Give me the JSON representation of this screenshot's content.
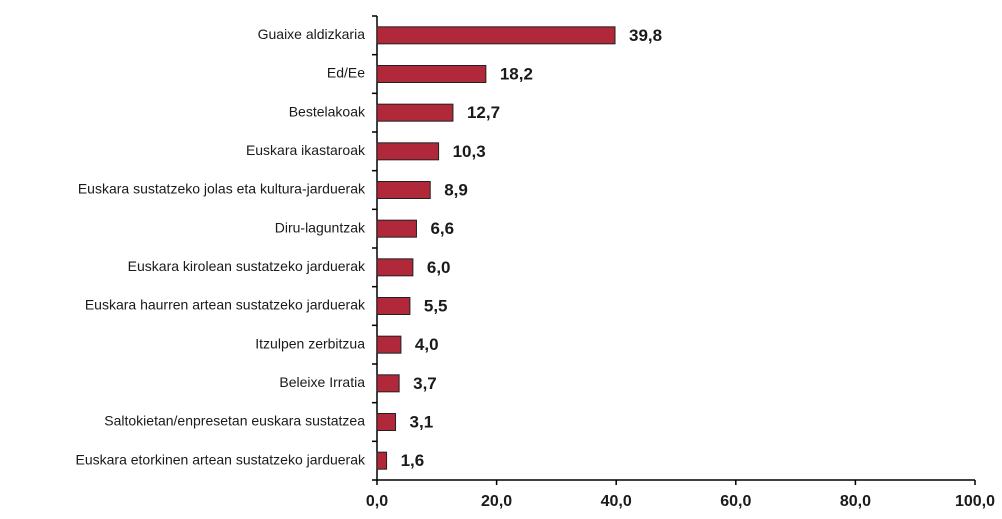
{
  "chart_data": {
    "type": "bar",
    "orientation": "horizontal",
    "categories": [
      "Guaixe aldizkaria",
      "Ed/Ee",
      "Bestelakoak",
      "Euskara ikastaroak",
      "Euskara sustatzeko jolas eta kultura-jarduerak",
      "Diru-laguntzak",
      "Euskara kirolean sustatzeko jarduerak",
      "Euskara haurren artean sustatzeko jarduerak",
      "Itzulpen zerbitzua",
      "Beleixe Irratia",
      "Saltokietan/enpresetan euskara sustatzea",
      "Euskara etorkinen artean sustatzeko jarduerak"
    ],
    "values": [
      39.8,
      18.2,
      12.7,
      10.3,
      8.9,
      6.6,
      6.0,
      5.5,
      4.0,
      3.7,
      3.1,
      1.6
    ],
    "value_labels": [
      "39,8",
      "18,2",
      "12,7",
      "10,3",
      "8,9",
      "6,6",
      "6,0",
      "5,5",
      "4,0",
      "3,7",
      "3,1",
      "1,6"
    ],
    "color": "#b0283a",
    "xlim": [
      0,
      100
    ],
    "xticks": [
      {
        "value": 0,
        "label": "0,0"
      },
      {
        "value": 20,
        "label": "20,0"
      },
      {
        "value": 40,
        "label": "40,0"
      },
      {
        "value": 60,
        "label": "60,0"
      },
      {
        "value": 80,
        "label": "80,0"
      },
      {
        "value": 100,
        "label": "100,0"
      }
    ]
  }
}
